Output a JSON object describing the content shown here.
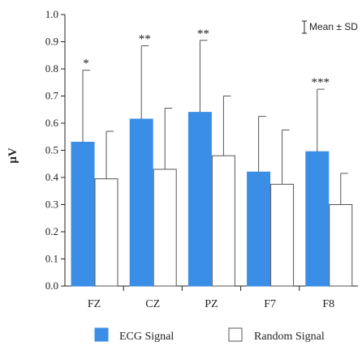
{
  "chart_data": {
    "type": "bar",
    "title": "",
    "xlabel": "",
    "ylabel": "μV",
    "ylim": [
      0,
      1.0
    ],
    "yticks": [
      "0.0",
      "0.1",
      "0.2",
      "0.3",
      "0.4",
      "0.5",
      "0.6",
      "0.7",
      "0.8",
      "0.9",
      "1.0"
    ],
    "categories": [
      "FZ",
      "CZ",
      "PZ",
      "F7",
      "F8"
    ],
    "series": [
      {
        "name": "ECG Signal",
        "color": "#3a8ee6",
        "values": [
          0.53,
          0.615,
          0.64,
          0.42,
          0.495
        ],
        "sd": [
          0.265,
          0.27,
          0.265,
          0.205,
          0.23
        ]
      },
      {
        "name": "Random Signal",
        "color": "#ffffff",
        "values": [
          0.395,
          0.43,
          0.48,
          0.375,
          0.3
        ],
        "sd": [
          0.175,
          0.225,
          0.22,
          0.2,
          0.115
        ]
      }
    ],
    "significance": [
      "*",
      "**",
      "**",
      "",
      "***"
    ],
    "error_legend": "Mean ± SD",
    "grid": false,
    "legend_position": "bottom"
  }
}
